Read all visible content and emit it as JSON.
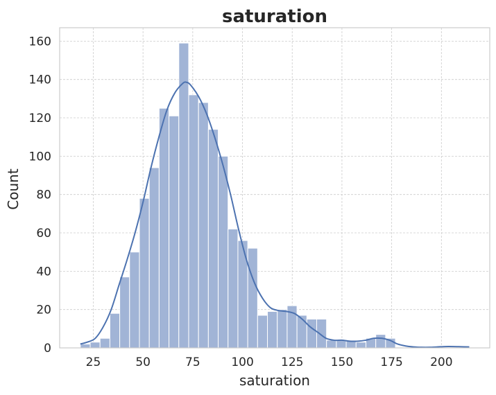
{
  "chart_data": {
    "type": "bar",
    "title": "saturation",
    "xlabel": "saturation",
    "ylabel": "Count",
    "xlim": [
      8.1,
      224.3
    ],
    "ylim": [
      0,
      167
    ],
    "xticks": [
      25,
      50,
      75,
      100,
      125,
      150,
      175,
      200
    ],
    "yticks": [
      0,
      20,
      40,
      60,
      80,
      100,
      120,
      140,
      160
    ],
    "grid": true,
    "bin_width": 4.95,
    "bins_start": 18.5,
    "counts": [
      2,
      3,
      5,
      18,
      37,
      50,
      78,
      94,
      125,
      121,
      159,
      132,
      128,
      114,
      100,
      62,
      56,
      52,
      17,
      19,
      20,
      22,
      17,
      15,
      15,
      4,
      4,
      4,
      3,
      5,
      7,
      5,
      0,
      0,
      0,
      0,
      0,
      0,
      0,
      0
    ],
    "kde": {
      "x": [
        18.5,
        22,
        26,
        30,
        34,
        38,
        42,
        46,
        50,
        54,
        58,
        62,
        66,
        70,
        72,
        74,
        78,
        82,
        86,
        90,
        94,
        98,
        102,
        106,
        110,
        114,
        118,
        122,
        126,
        130,
        134,
        138,
        142,
        146,
        150,
        154,
        158,
        162,
        166,
        170,
        174,
        178,
        182,
        186,
        190,
        194,
        198,
        202,
        206,
        210,
        214
      ],
      "y": [
        2,
        3,
        5,
        11,
        20,
        33,
        46,
        60,
        76,
        94,
        110,
        124,
        133,
        138,
        138.5,
        137,
        131,
        122,
        110,
        96,
        80,
        62,
        46,
        34,
        26,
        21,
        19.5,
        19,
        18,
        15,
        11,
        8,
        5,
        4,
        4,
        3.5,
        3.5,
        4,
        5,
        5,
        4,
        2,
        1,
        0.5,
        0.3,
        0.3,
        0.5,
        0.7,
        0.7,
        0.6,
        0.5
      ]
    },
    "colors": {
      "bar": "#a1b4d6",
      "line": "#4c72b0"
    }
  }
}
